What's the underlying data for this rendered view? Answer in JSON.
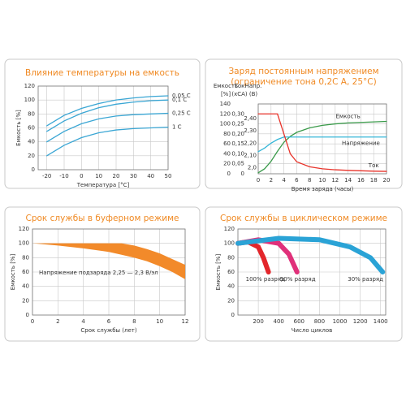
{
  "chart_data": [
    {
      "type": "line",
      "title": "Влияние температуры на емкость",
      "xlabel": "Температура [°C]",
      "ylabel": "Емкость [%]",
      "x": [
        -20,
        -10,
        0,
        10,
        20,
        30,
        40,
        50
      ],
      "xlim": [
        -25,
        50
      ],
      "xticks": [
        -20,
        -10,
        0,
        10,
        20,
        30,
        40,
        50
      ],
      "ylim": [
        0,
        120
      ],
      "yticks": [
        0,
        20,
        40,
        60,
        80,
        100,
        120
      ],
      "grid": true,
      "series": [
        {
          "name": "0,05 C",
          "color": "#3aa6d4",
          "values": [
            63,
            78,
            88,
            95,
            100,
            103,
            105,
            106
          ]
        },
        {
          "name": "0,1 C",
          "color": "#3aa6d4",
          "values": [
            55,
            70,
            81,
            89,
            94,
            97,
            99,
            100
          ]
        },
        {
          "name": "0,25 C",
          "color": "#3aa6d4",
          "values": [
            40,
            55,
            66,
            73,
            77,
            79,
            80,
            81
          ]
        },
        {
          "name": "1 C",
          "color": "#3aa6d4",
          "values": [
            20,
            35,
            46,
            53,
            57,
            59,
            60,
            61
          ]
        }
      ]
    },
    {
      "type": "line",
      "title": [
        "Заряд постоянным напряжением",
        "(ограничение тона 0,2C A, 25°C)"
      ],
      "xlabel": "Время заряда (часы)",
      "ylabel": [
        "Емкость",
        "[%]"
      ],
      "y2label": [
        "Ток",
        "(xCA)"
      ],
      "y3label": [
        "Напр.",
        "(B)"
      ],
      "x": [
        0,
        1,
        2,
        3,
        4,
        5,
        6,
        8,
        10,
        12,
        14,
        16,
        18,
        20
      ],
      "xlim": [
        0,
        20
      ],
      "xticks": [
        0,
        2,
        4,
        6,
        8,
        10,
        12,
        14,
        16,
        18,
        20
      ],
      "ylim": [
        0,
        140
      ],
      "yticks": [
        0,
        20,
        40,
        60,
        80,
        100,
        120,
        140
      ],
      "y2lim": [
        0,
        0.35
      ],
      "y2ticks": [
        0,
        {
          "value": 0.05,
          "label": "0,05"
        },
        {
          "value": 0.1,
          "label": "0,10"
        },
        {
          "value": 0.15,
          "label": "0,15"
        },
        {
          "value": 0.2,
          "label": "0,20"
        },
        {
          "value": 0.25,
          "label": "0,25"
        },
        {
          "value": 0.3,
          "label": "0,30"
        }
      ],
      "y3lim": [
        1.95,
        2.52
      ],
      "y3ticks": [
        {
          "value": 2,
          "label": "2,0"
        },
        {
          "value": 2.1,
          "label": "2,10"
        },
        {
          "value": 2.2,
          "label": "2,20"
        },
        {
          "value": 2.3,
          "label": "2,30"
        },
        {
          "value": 2.4,
          "label": "2,40"
        }
      ],
      "grid": true,
      "series": [
        {
          "name": "Емкость",
          "color": "#3a9a4a",
          "values": [
            2,
            10,
            25,
            45,
            63,
            75,
            83,
            92,
            97,
            100,
            102,
            103,
            104,
            105
          ]
        },
        {
          "name": "Напряжение",
          "color": "#35b6d8",
          "axis": "y3",
          "values": [
            2.13,
            2.16,
            2.2,
            2.23,
            2.25,
            2.25,
            2.25,
            2.25,
            2.25,
            2.25,
            2.25,
            2.25,
            2.25,
            2.25
          ]
        },
        {
          "name": "Ток",
          "color": "#e8332a",
          "axis": "y2",
          "values": [
            0.3,
            0.3,
            0.3,
            0.3,
            0.2,
            0.1,
            0.06,
            0.035,
            0.025,
            0.02,
            0.017,
            0.015,
            0.013,
            0.012
          ]
        }
      ]
    },
    {
      "type": "band",
      "title": "Срок службы в буферном режиме",
      "xlabel": "Срок службы (лет)",
      "ylabel": "Емкость [%]",
      "annotation": "Напряжение подзаряда 2,25 — 2,3 В/эл",
      "x": [
        0,
        2,
        4,
        6,
        7,
        8,
        9,
        10,
        11,
        12
      ],
      "xlim": [
        0,
        12
      ],
      "xticks": [
        0,
        2,
        4,
        6,
        8,
        10,
        12
      ],
      "ylim": [
        0,
        120
      ],
      "yticks": [
        0,
        20,
        40,
        60,
        80,
        100,
        120
      ],
      "grid": true,
      "color": "#f28a2a",
      "high": [
        100,
        100,
        100,
        100,
        100,
        97,
        92,
        86,
        78,
        70
      ],
      "low": [
        100,
        97,
        93,
        88,
        84,
        80,
        75,
        68,
        60,
        50
      ]
    },
    {
      "type": "line",
      "title": "Срок службы в циклическом режиме",
      "xlabel": "Число циклов",
      "ylabel": "Емкость [%]",
      "xlim": [
        0,
        1450
      ],
      "xticks": [
        200,
        400,
        600,
        800,
        1000,
        1200,
        1400
      ],
      "ylim": [
        0,
        120
      ],
      "yticks": [
        0,
        20,
        40,
        60,
        80,
        100,
        120
      ],
      "grid": true,
      "line_width": 6,
      "series": [
        {
          "name": "100% разряд",
          "color": "#e3262b",
          "x": [
            0,
            100,
            200,
            250,
            300
          ],
          "values": [
            100,
            102,
            95,
            80,
            60
          ]
        },
        {
          "name": "50% разряд",
          "color": "#e0307a",
          "x": [
            0,
            200,
            400,
            500,
            580
          ],
          "values": [
            100,
            105,
            100,
            85,
            60
          ]
        },
        {
          "name": "30% разряд",
          "color": "#2aa3d6",
          "x": [
            0,
            400,
            800,
            1100,
            1300,
            1420
          ],
          "values": [
            100,
            107,
            105,
            95,
            80,
            60
          ]
        }
      ]
    }
  ]
}
